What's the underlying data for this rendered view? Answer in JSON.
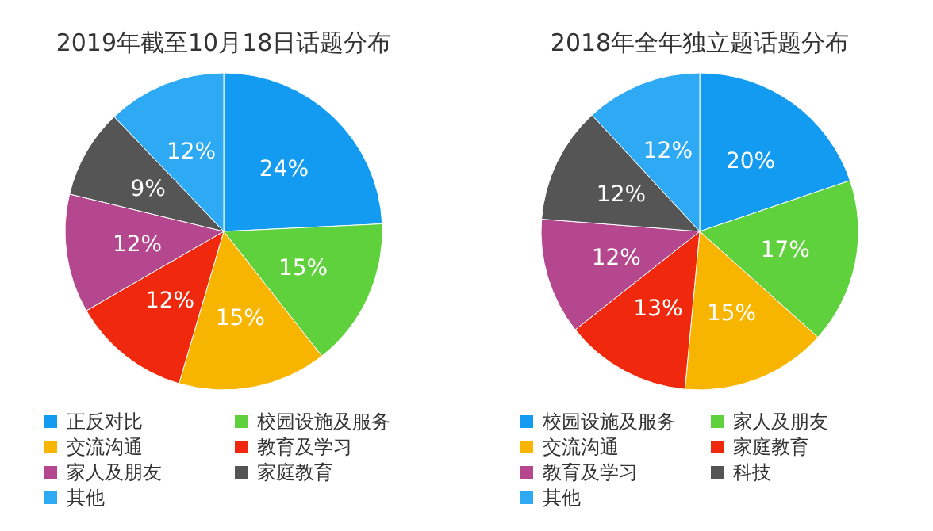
{
  "chart_data": [
    {
      "type": "pie",
      "title": "2019年截至10月18日话题分布",
      "categories": [
        "正反对比",
        "校园设施及服务",
        "交流沟通",
        "教育及学习",
        "家人及朋友",
        "家庭教育",
        "其他"
      ],
      "values": [
        24,
        15,
        15,
        12,
        12,
        9,
        12
      ],
      "value_labels": [
        "24%",
        "15%",
        "15%",
        "12%",
        "12%",
        "9%",
        "12%"
      ],
      "colors": [
        "#139bf2",
        "#5fd13c",
        "#f7b500",
        "#f0290e",
        "#b5478f",
        "#555555",
        "#2eaaf5"
      ],
      "legend": "bottom"
    },
    {
      "type": "pie",
      "title": "2018年全年独立题话题分布",
      "categories": [
        "校园设施及服务",
        "家人及朋友",
        "交流沟通",
        "家庭教育",
        "教育及学习",
        "科技",
        "其他"
      ],
      "values": [
        20,
        17,
        15,
        13,
        12,
        12,
        12
      ],
      "value_labels": [
        "20%",
        "17%",
        "15%",
        "13%",
        "12%",
        "12%",
        "12%"
      ],
      "colors": [
        "#139bf2",
        "#5fd13c",
        "#f7b500",
        "#f0290e",
        "#b5478f",
        "#555555",
        "#2eaaf5"
      ],
      "legend": "bottom"
    }
  ]
}
